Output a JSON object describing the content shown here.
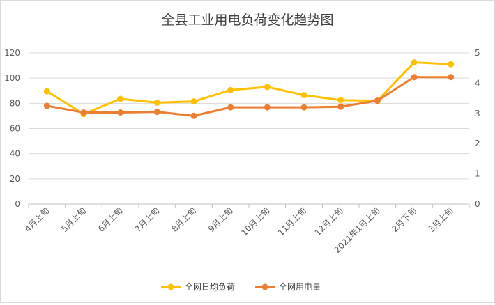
{
  "chart_data": {
    "type": "line",
    "title": "全县工业用电负荷变化趋势图",
    "categories": [
      "4月上旬",
      "5月上旬",
      "6月上旬",
      "7月上旬",
      "8月上旬",
      "9月上旬",
      "10月上旬",
      "11月上旬",
      "12月上旬",
      "2021年1月上旬",
      "2月下旬",
      "3月上旬"
    ],
    "y_left": {
      "min": 0,
      "max": 120,
      "step": 20,
      "ticks": [
        "0",
        "20",
        "40",
        "60",
        "80",
        "100",
        "120"
      ]
    },
    "y_right": {
      "min": 0,
      "max": 5,
      "step": 1,
      "ticks": [
        "0",
        "1",
        "2",
        "3",
        "4",
        "5"
      ]
    },
    "grid": true,
    "legend_position": "bottom",
    "series": [
      {
        "name": "全网日均负荷",
        "axis": "left",
        "color": "#FFC000",
        "values": [
          89.5,
          71.5,
          83.5,
          80.5,
          81.5,
          90.5,
          93,
          86.5,
          82.5,
          82,
          112.5,
          111
        ]
      },
      {
        "name": "全网用电量",
        "axis": "right",
        "color": "#ED7D31",
        "values": [
          3.25,
          3.03,
          3.03,
          3.05,
          2.92,
          3.2,
          3.2,
          3.2,
          3.22,
          3.42,
          4.2,
          4.2
        ]
      }
    ]
  }
}
